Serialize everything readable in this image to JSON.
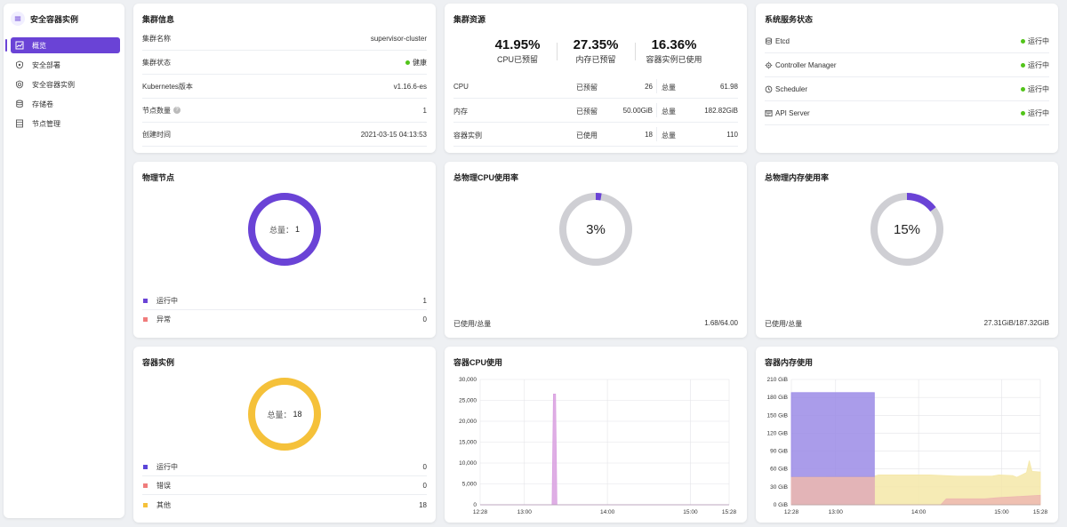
{
  "sidebar": {
    "title": "安全容器实例",
    "items": [
      {
        "label": "概览",
        "icon": "chart-icon",
        "active": true
      },
      {
        "label": "安全部署",
        "icon": "shield-icon",
        "active": false
      },
      {
        "label": "安全容器实例",
        "icon": "container-icon",
        "active": false
      },
      {
        "label": "存储卷",
        "icon": "database-icon",
        "active": false
      },
      {
        "label": "节点管理",
        "icon": "server-icon",
        "active": false
      }
    ]
  },
  "cluster_info": {
    "title": "集群信息",
    "rows": [
      {
        "label": "集群名称",
        "value": "supervisor-cluster"
      },
      {
        "label": "集群状态",
        "value": "健康",
        "status_color": "#52c41a"
      },
      {
        "label": "Kubernetes版本",
        "value": "v1.16.6-es"
      },
      {
        "label": "节点数量",
        "value": "1",
        "help": "?"
      },
      {
        "label": "创建时间",
        "value": "2021-03-15 04:13:53"
      }
    ]
  },
  "cluster_resources": {
    "title": "集群资源",
    "stats": [
      {
        "value": "41.95%",
        "label": "CPU已预留"
      },
      {
        "value": "27.35%",
        "label": "内存已预留"
      },
      {
        "value": "16.36%",
        "label": "容器实例已使用"
      }
    ],
    "rows": [
      {
        "name": "CPU",
        "status": "已预留",
        "used": "26",
        "total_label": "总量",
        "total": "61.98"
      },
      {
        "name": "内存",
        "status": "已预留",
        "used": "50.00GiB",
        "total_label": "总量",
        "total": "182.82GiB"
      },
      {
        "name": "容器实例",
        "status": "已使用",
        "used": "18",
        "total_label": "总量",
        "total": "110"
      }
    ]
  },
  "services": {
    "title": "系统服务状态",
    "rows": [
      {
        "name": "Etcd",
        "icon": "database-icon",
        "status": "运行中"
      },
      {
        "name": "Controller Manager",
        "icon": "gear-icon",
        "status": "运行中"
      },
      {
        "name": "Scheduler",
        "icon": "clock-icon",
        "status": "运行中"
      },
      {
        "name": "API Server",
        "icon": "terminal-icon",
        "status": "运行中"
      }
    ],
    "status_color": "#52c41a"
  },
  "physical_nodes": {
    "title": "物理节点",
    "center_label": "总量：",
    "total": "1",
    "legend": [
      {
        "label": "运行中",
        "count": "1",
        "color": "#6a43d6"
      },
      {
        "label": "异常",
        "count": "0",
        "color": "#f07c7c"
      }
    ]
  },
  "total_cpu": {
    "title": "总物理CPU使用率",
    "percent": "3%",
    "fraction": 0.026,
    "foot_label": "已使用/总量",
    "foot_value": "1.68/64.00"
  },
  "total_mem": {
    "title": "总物理内存使用率",
    "percent": "15%",
    "fraction": 0.146,
    "foot_label": "已使用/总量",
    "foot_value": "27.31GiB/187.32GiB"
  },
  "containers": {
    "title": "容器实例",
    "center_label": "总量：",
    "total": "18",
    "legend": [
      {
        "label": "运行中",
        "count": "0",
        "color": "#5b45d8"
      },
      {
        "label": "错误",
        "count": "0",
        "color": "#f07c7c"
      },
      {
        "label": "其他",
        "count": "18",
        "color": "#f5c13a"
      }
    ]
  },
  "colors": {
    "accent": "#6a43d6",
    "ring_bg": "#cfcfd4",
    "ok": "#52c41a",
    "yellow": "#f5c13a",
    "purple_fill": "#a79bea",
    "yellow_fill": "#f8ecae",
    "pink_fill": "#edb8b0"
  },
  "chart_data": [
    {
      "type": "area",
      "title": "容器CPU使用",
      "x_ticks": [
        "12:28",
        "13:00",
        "14:00",
        "15:00",
        "15:28"
      ],
      "y_ticks": [
        "0",
        "5,000",
        "10,000",
        "15,000",
        "20,000",
        "25,000",
        "30,000"
      ],
      "ylim": [
        0,
        30000
      ],
      "x_range_minutes": [
        0,
        180
      ],
      "series": [
        {
          "color": "#d9a0e0",
          "points": [
            [
              0,
              0
            ],
            [
              52,
              0
            ],
            [
              53,
              26500
            ],
            [
              54.5,
              26500
            ],
            [
              55.5,
              0
            ],
            [
              180,
              0
            ]
          ]
        }
      ],
      "grid": true
    },
    {
      "type": "area",
      "title": "容器内存使用",
      "x_ticks": [
        "12:28",
        "13:00",
        "14:00",
        "15:00",
        "15:28"
      ],
      "y_ticks": [
        "0 GiB",
        "30 GiB",
        "60 GiB",
        "90 GiB",
        "120 GiB",
        "150 GiB",
        "180 GiB",
        "210 GiB"
      ],
      "ylim": [
        0,
        210
      ],
      "x_range_minutes": [
        0,
        180
      ],
      "series": [
        {
          "color": "#f5e8a8",
          "points": [
            [
              0,
              47
            ],
            [
              60,
              48
            ],
            [
              63,
              50
            ],
            [
              100,
              50
            ],
            [
              120,
              48
            ],
            [
              145,
              48
            ],
            [
              150,
              50
            ],
            [
              160,
              49
            ],
            [
              163,
              46
            ],
            [
              170,
              54
            ],
            [
              172,
              74
            ],
            [
              174,
              56
            ],
            [
              180,
              55
            ]
          ]
        },
        {
          "color": "#9b8be6",
          "points": [
            [
              0,
              188
            ],
            [
              60,
              188
            ],
            [
              60,
              0
            ]
          ]
        },
        {
          "color": "#edb8b0",
          "points": [
            [
              0,
              46
            ],
            [
              60,
              46
            ],
            [
              60,
              0
            ],
            [
              108,
              0
            ],
            [
              112,
              10
            ],
            [
              140,
              10
            ],
            [
              150,
              12
            ],
            [
              165,
              14
            ],
            [
              180,
              16
            ]
          ]
        }
      ],
      "grid": true
    }
  ]
}
